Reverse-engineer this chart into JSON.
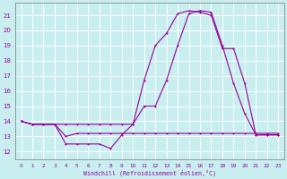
{
  "xlabel": "Windchill (Refroidissement éolien,°C)",
  "bg_color": "#c8eef0",
  "grid_color": "#ffffff",
  "line_color": "#990099",
  "xlim": [
    -0.5,
    23.5
  ],
  "ylim": [
    11.5,
    21.8
  ],
  "yticks": [
    12,
    13,
    14,
    15,
    16,
    17,
    18,
    19,
    20,
    21
  ],
  "xticks": [
    0,
    1,
    2,
    3,
    4,
    5,
    6,
    7,
    8,
    9,
    10,
    11,
    12,
    13,
    14,
    15,
    16,
    17,
    18,
    19,
    20,
    21,
    22,
    23
  ],
  "series1_x": [
    0,
    1,
    2,
    3,
    4,
    5,
    6,
    7,
    8,
    9,
    10,
    11,
    12,
    13,
    14,
    15,
    16,
    17,
    18,
    19,
    20,
    21,
    22,
    23
  ],
  "series1_y": [
    14.0,
    13.8,
    13.8,
    13.8,
    13.8,
    13.8,
    13.8,
    13.8,
    13.8,
    13.8,
    13.8,
    16.7,
    19.0,
    19.8,
    21.1,
    21.3,
    21.2,
    21.0,
    18.8,
    18.8,
    16.5,
    13.1,
    13.1,
    13.1
  ],
  "series2_x": [
    0,
    1,
    2,
    3,
    4,
    5,
    6,
    7,
    8,
    9,
    10,
    11,
    12,
    13,
    14,
    15,
    16,
    17,
    18,
    19,
    20,
    21,
    22,
    23
  ],
  "series2_y": [
    14.0,
    13.8,
    13.8,
    13.8,
    13.0,
    13.2,
    13.2,
    13.2,
    13.2,
    13.2,
    13.2,
    13.2,
    13.2,
    13.2,
    13.2,
    13.2,
    13.2,
    13.2,
    13.2,
    13.2,
    13.2,
    13.2,
    13.2,
    13.2
  ],
  "series3_x": [
    0,
    1,
    2,
    3,
    4,
    5,
    6,
    7,
    8,
    9,
    10,
    11,
    12,
    13,
    14,
    15,
    16,
    17,
    18,
    19,
    20,
    21,
    22,
    23
  ],
  "series3_y": [
    14.0,
    13.8,
    13.8,
    13.8,
    12.5,
    12.5,
    12.5,
    12.5,
    12.2,
    13.1,
    13.8,
    15.0,
    15.0,
    16.7,
    19.0,
    21.1,
    21.3,
    21.2,
    19.0,
    16.5,
    14.5,
    13.1,
    13.1,
    13.1
  ]
}
